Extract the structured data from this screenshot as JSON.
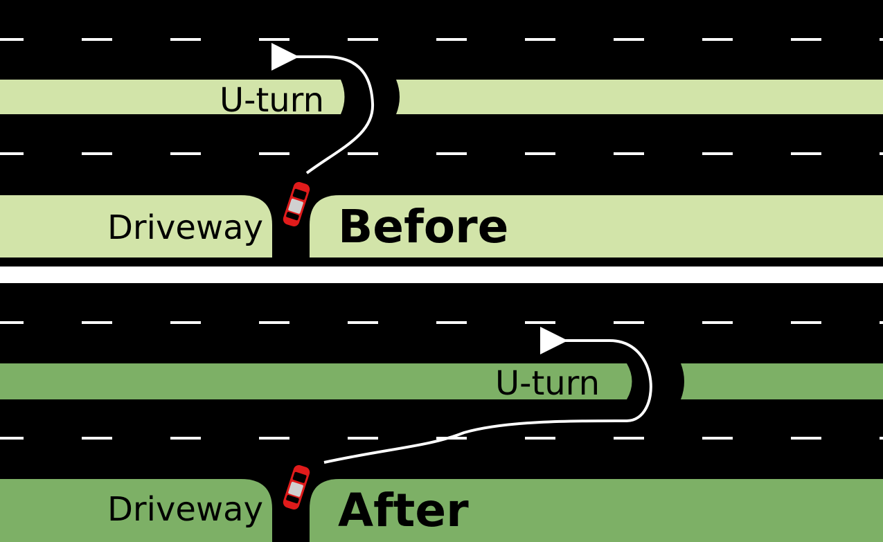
{
  "colors": {
    "road": "#000000",
    "lane_marking": "#ffffff",
    "median_before": "#d2e4a9",
    "median_after": "#7db066",
    "car": "#e01b1b",
    "path": "#ffffff",
    "separator": "#ffffff"
  },
  "panels": {
    "before": {
      "title": "Before",
      "uturn_label": "U-turn",
      "driveway_label": "Driveway"
    },
    "after": {
      "title": "After",
      "uturn_label": "U-turn",
      "driveway_label": "Driveway"
    }
  },
  "icons": {
    "car": "car-icon",
    "arrow": "uturn-arrow-icon"
  }
}
